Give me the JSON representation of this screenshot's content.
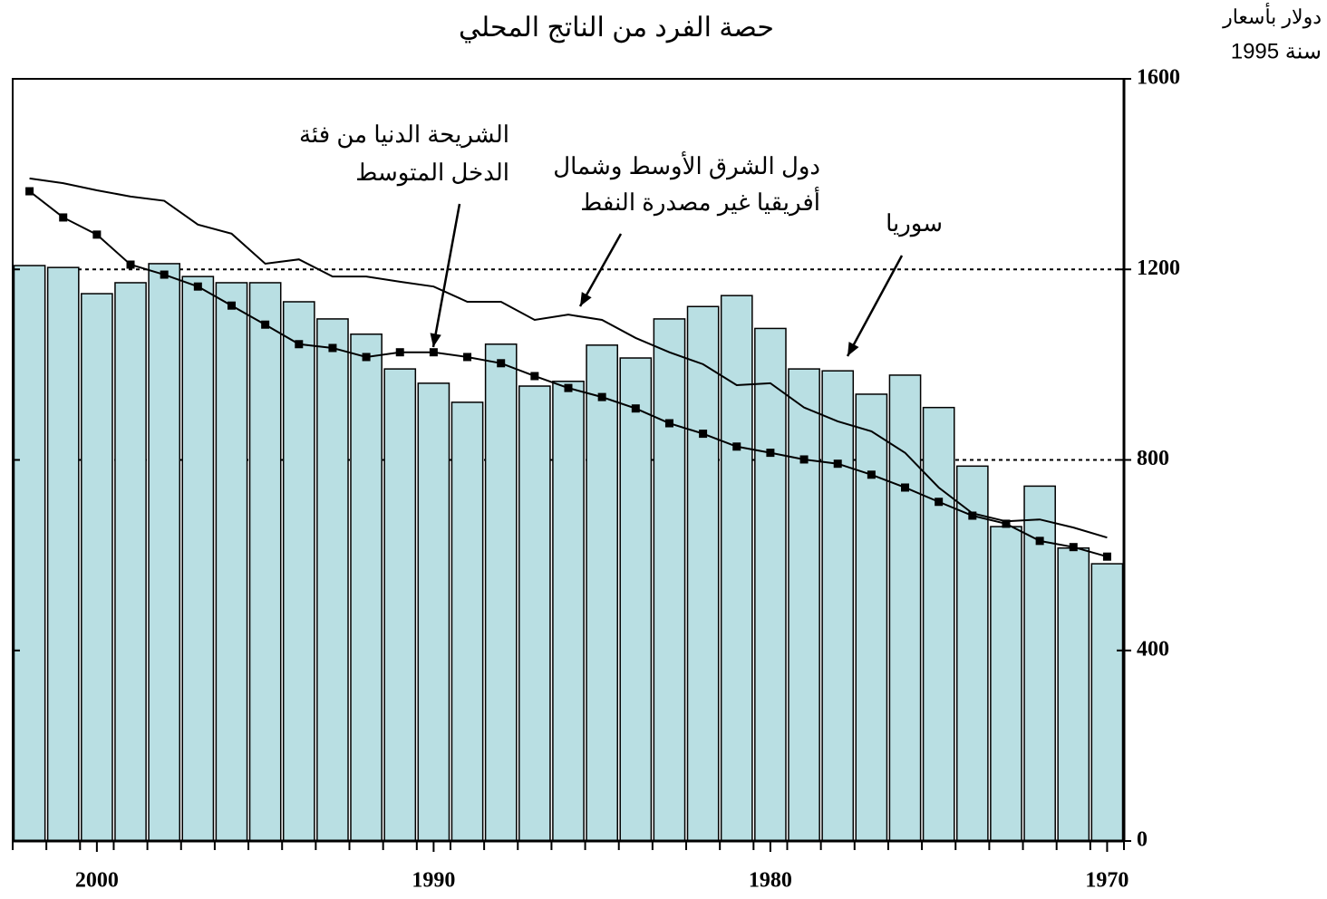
{
  "chart_data": {
    "type": "bar-line",
    "title": "حصة الفرد من الناتج المحلي",
    "ylabel": [
      "دولار بأسعار",
      "سنة 1995"
    ],
    "x": [
      1970,
      1971,
      1972,
      1973,
      1974,
      1975,
      1976,
      1977,
      1978,
      1979,
      1980,
      1981,
      1982,
      1983,
      1984,
      1985,
      1986,
      1987,
      1988,
      1989,
      1990,
      1991,
      1992,
      1993,
      1994,
      1995,
      1996,
      1997,
      1998,
      1999,
      2000,
      2001,
      2002
    ],
    "xlim": [
      2002.5,
      1969.5
    ],
    "xticks": [
      2000,
      1990,
      1980,
      1970
    ],
    "ylim": [
      0,
      1600
    ],
    "yticks": [
      0,
      400,
      800,
      1200,
      1600
    ],
    "grid_dotted": [
      800,
      1200,
      1600
    ],
    "series": [
      {
        "name_lines": [
          "سوريا"
        ],
        "kind": "bar",
        "color": "#b9dfe3",
        "values": [
          582,
          615,
          745,
          660,
          787,
          910,
          978,
          938,
          987,
          991,
          1076,
          1145,
          1122,
          1096,
          1014,
          1041,
          965,
          955,
          1043,
          921,
          961,
          991,
          1064,
          1096,
          1132,
          1172,
          1172,
          1185,
          1212,
          1172,
          1149,
          1204,
          1208
        ]
      },
      {
        "name_lines": [
          "الشريحة الدنيا من فئة",
          "الدخل المتوسط"
        ],
        "kind": "line-marker",
        "color": "#000000",
        "values": [
          597,
          617,
          630,
          666,
          683,
          712,
          742,
          769,
          792,
          801,
          815,
          828,
          855,
          877,
          908,
          932,
          951,
          976,
          1003,
          1016,
          1026,
          1026,
          1016,
          1035,
          1043,
          1084,
          1124,
          1164,
          1189,
          1210,
          1273,
          1309,
          1364
        ]
      },
      {
        "name_lines": [
          "دول الشرق الأوسط وشمال",
          "أفريقيا غير مصدرة النفط"
        ],
        "kind": "line",
        "color": "#000000",
        "values": [
          637,
          658,
          675,
          671,
          688,
          742,
          815,
          860,
          881,
          910,
          961,
          957,
          1001,
          1026,
          1056,
          1094,
          1105,
          1094,
          1132,
          1132,
          1164,
          1174,
          1185,
          1185,
          1221,
          1212,
          1275,
          1294,
          1344,
          1353,
          1366,
          1381,
          1391
        ]
      }
    ]
  }
}
